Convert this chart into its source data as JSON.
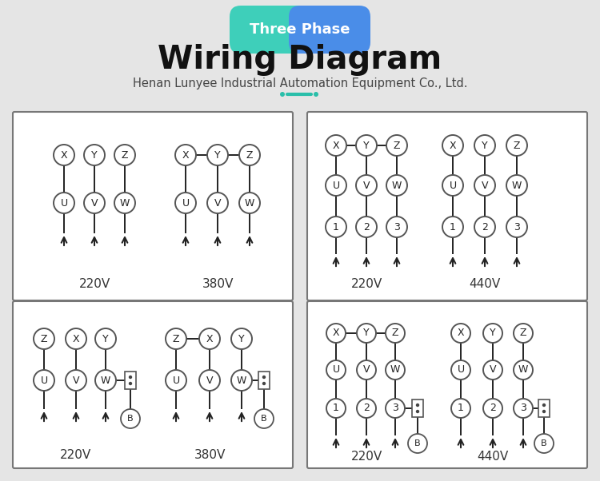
{
  "bg_color": "#e5e5e5",
  "title_badge_text": "Three Phase",
  "title_text": "Wiring Diagram",
  "subtitle_text": "Henan Lunyee Industrial Automation Equipment Co., Ltd.",
  "accent_color": "#2abfaa",
  "box_bg": "#ffffff",
  "box_border": "#777777",
  "circle_edge": "#555555",
  "line_color": "#222222",
  "label_color": "#333333"
}
